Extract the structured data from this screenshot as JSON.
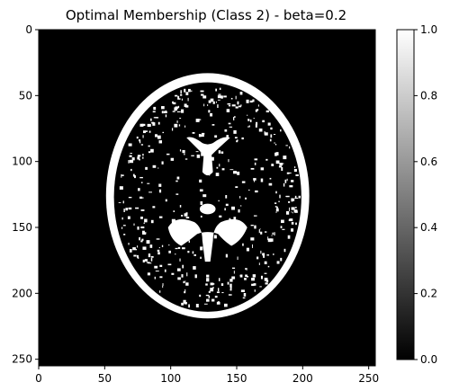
{
  "chart_data": {
    "type": "heatmap",
    "title": "Optimal Membership (Class 2) - beta=0.2",
    "xlabel": "",
    "ylabel": "",
    "xlim": [
      0,
      255
    ],
    "ylim": [
      0,
      255
    ],
    "x_ticks": [
      "0",
      "50",
      "100",
      "150",
      "200",
      "250"
    ],
    "y_ticks": [
      "0",
      "50",
      "100",
      "150",
      "200",
      "250"
    ],
    "x_tick_values": [
      0,
      50,
      100,
      150,
      200,
      250
    ],
    "y_tick_values": [
      0,
      50,
      100,
      150,
      200,
      250
    ],
    "image_shape": [
      256,
      256
    ],
    "colormap": "gray",
    "colorbar": {
      "range": [
        0.0,
        1.0
      ],
      "ticks": [
        "0.0",
        "0.2",
        "0.4",
        "0.6",
        "0.8",
        "1.0"
      ],
      "tick_values": [
        0.0,
        0.2,
        0.4,
        0.6,
        0.8,
        1.0
      ],
      "placement": "right"
    },
    "regions": {
      "background_value": 0.0,
      "skull_outline": {
        "shape": "ellipse",
        "cx": 128,
        "cy": 126,
        "rx": 77,
        "ry": 93,
        "value": 1.0,
        "thickness": 6
      },
      "lateral_ventricle_upper": {
        "cx": 128,
        "cy": 92,
        "value": 1.0
      },
      "lateral_ventricle_lower": {
        "cx": 128,
        "cy": 170,
        "value": 1.0
      },
      "tissue_fill_value": 0.0
    },
    "colors": {
      "high": "#ffffff",
      "low": "#000000"
    }
  }
}
